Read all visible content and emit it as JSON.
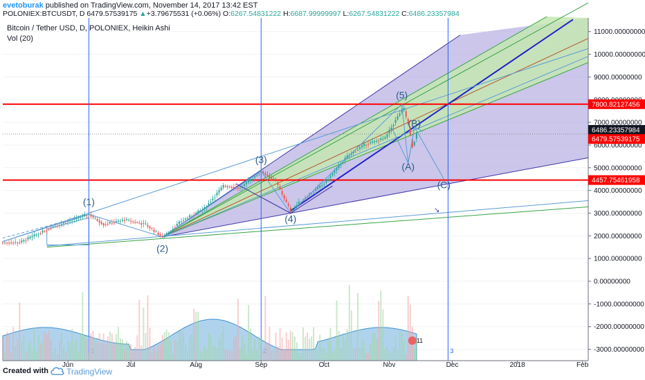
{
  "header": {
    "author": "evetoburak",
    "published_text": " published on TradingView.com, November 14, 2017 13:42 EST",
    "symbol": "POLONIEX:BTCUSDT, D",
    "last_price": "6479.57539175",
    "change_arrow": "▲",
    "change": "+3.79675531 (+0.06%)",
    "o_label": "O:",
    "o_value": "6267.54831222",
    "h_label": "H:",
    "h_value": "6687.99999997",
    "l_label": "L:",
    "l_value": "6267.54831222",
    "c_label": "C:",
    "c_value": "6486.23357984"
  },
  "legend": {
    "title": "Bitcoin / Tether USD, D, POLONIEX, Heikin Ashi",
    "indicator": "Vol (20)"
  },
  "footer": {
    "created_with": "Created with",
    "brand": "TradingView"
  },
  "colors": {
    "up_candle": "#26a69a",
    "down_candle": "#ef5350",
    "fan_fill": "#c5e6b3",
    "channel_fill": "#b9b3e3",
    "horizontal_line": "#ff0000",
    "vertical_line": "#2962ff",
    "axis_highlight_dark": "#131722",
    "axis_highlight_red": "#ff0000"
  },
  "chart_data": {
    "type": "candlestick",
    "style": "Heikin Ashi",
    "x_ticks": [
      "Jun",
      "Jul",
      "Aug",
      "Sep",
      "Oct",
      "Nov",
      "Dec",
      "2018",
      "Feb"
    ],
    "y_ticks": [
      "11000.00000000",
      "10000.00000000",
      "9000.00000000",
      "8000.00000000",
      "7000.00000000",
      "6000.00000000",
      "5000.00000000",
      "4000.00000000",
      "3000.00000000",
      "2000.00000000",
      "1000.00000000",
      "0.00000000",
      "-1000.00000000",
      "-2000.00000000",
      "-3000.00000000"
    ],
    "ylim": [
      -3500,
      11600
    ],
    "price_path": [
      {
        "date": "2017-05-09",
        "price": 1700
      },
      {
        "date": "2017-05-25",
        "price": 2400
      },
      {
        "date": "2017-06-11",
        "price": 2950
      },
      {
        "date": "2017-06-18",
        "price": 2500
      },
      {
        "date": "2017-06-28",
        "price": 2700
      },
      {
        "date": "2017-07-08",
        "price": 2500
      },
      {
        "date": "2017-07-16",
        "price": 1950
      },
      {
        "date": "2017-07-25",
        "price": 2650
      },
      {
        "date": "2017-08-05",
        "price": 3200
      },
      {
        "date": "2017-08-14",
        "price": 4200
      },
      {
        "date": "2017-08-22",
        "price": 4100
      },
      {
        "date": "2017-09-01",
        "price": 4850
      },
      {
        "date": "2017-09-08",
        "price": 4400
      },
      {
        "date": "2017-09-15",
        "price": 3100
      },
      {
        "date": "2017-09-22",
        "price": 3700
      },
      {
        "date": "2017-10-01",
        "price": 4300
      },
      {
        "date": "2017-10-12",
        "price": 5500
      },
      {
        "date": "2017-10-20",
        "price": 6000
      },
      {
        "date": "2017-10-30",
        "price": 6300
      },
      {
        "date": "2017-11-06",
        "price": 7400
      },
      {
        "date": "2017-11-08",
        "price": 7600
      },
      {
        "date": "2017-11-10",
        "price": 6900
      },
      {
        "date": "2017-11-12",
        "price": 5900
      },
      {
        "date": "2017-11-14",
        "price": 6480
      }
    ],
    "horizontal_levels": [
      {
        "price": 7800.82127456,
        "label": "7800.82127456"
      },
      {
        "price": 4457.75461958,
        "label": "4457.75461958"
      }
    ],
    "current_price_markers": [
      {
        "price": 6486.23357984,
        "label": "6486.23357984",
        "style": "dark"
      },
      {
        "price": 6479.57539175,
        "label": "6479.57539175",
        "style": "red"
      }
    ],
    "wave_labels": [
      {
        "text": "(1)",
        "date": "2017-06-11",
        "price": 3350
      },
      {
        "text": "(2)",
        "date": "2017-07-16",
        "price": 1300
      },
      {
        "text": "(3)",
        "date": "2017-09-01",
        "price": 5200
      },
      {
        "text": "(4)",
        "date": "2017-09-15",
        "price": 2600
      },
      {
        "text": "(5)",
        "date": "2017-11-07",
        "price": 8050
      },
      {
        "text": "(A)",
        "date": "2017-11-10",
        "price": 4900
      },
      {
        "text": "(B)",
        "date": "2017-11-13",
        "price": 6800
      },
      {
        "text": "(C)",
        "date": "2017-11-27",
        "price": 4100
      }
    ],
    "vertical_line_labels": [
      "1",
      "2",
      "3"
    ],
    "volume_badge": "11"
  }
}
